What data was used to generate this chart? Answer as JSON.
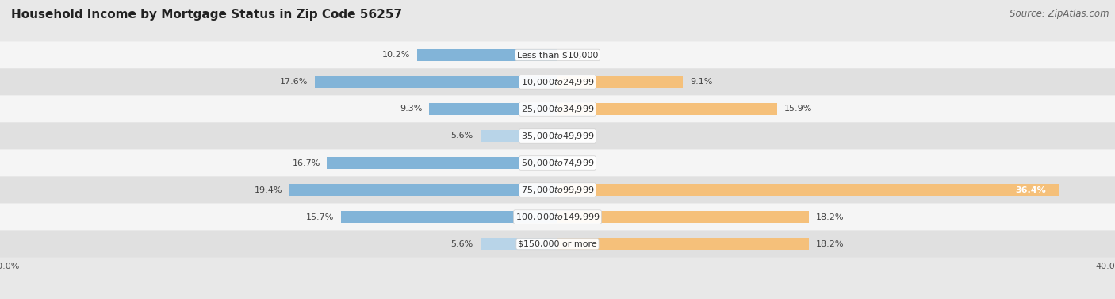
{
  "title": "Household Income by Mortgage Status in Zip Code 56257",
  "source": "Source: ZipAtlas.com",
  "categories": [
    "Less than $10,000",
    "$10,000 to $24,999",
    "$25,000 to $34,999",
    "$35,000 to $49,999",
    "$50,000 to $74,999",
    "$75,000 to $99,999",
    "$100,000 to $149,999",
    "$150,000 or more"
  ],
  "without_mortgage": [
    10.2,
    17.6,
    9.3,
    5.6,
    16.7,
    19.4,
    15.7,
    5.6
  ],
  "with_mortgage": [
    0.0,
    9.1,
    15.9,
    0.0,
    0.0,
    36.4,
    18.2,
    18.2
  ],
  "without_color": "#82b4d8",
  "with_color": "#f5c07a",
  "without_color_light": "#b8d4e8",
  "with_color_light": "#f5d9aa",
  "axis_limit": 40.0,
  "background_color": "#e8e8e8",
  "row_bg_light": "#f5f5f5",
  "row_bg_dark": "#e0e0e0",
  "title_fontsize": 11,
  "source_fontsize": 8.5,
  "label_fontsize": 8,
  "category_fontsize": 8,
  "legend_fontsize": 8.5,
  "axis_label_fontsize": 8
}
